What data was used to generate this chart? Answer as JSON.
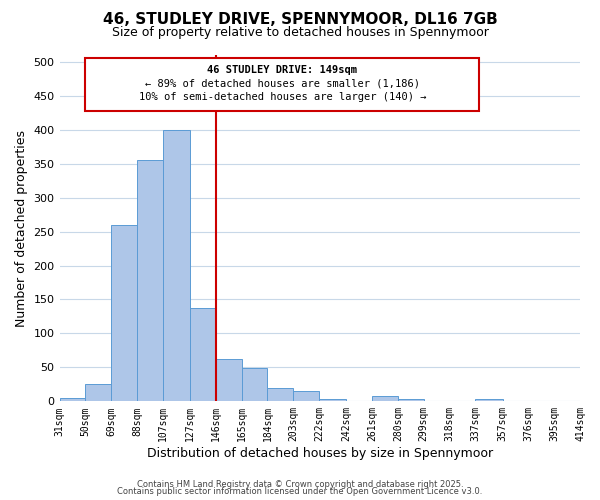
{
  "title": "46, STUDLEY DRIVE, SPENNYMOOR, DL16 7GB",
  "subtitle": "Size of property relative to detached houses in Spennymoor",
  "xlabel": "Distribution of detached houses by size in Spennymoor",
  "ylabel": "Number of detached properties",
  "bar_edges": [
    31,
    50,
    69,
    88,
    107,
    127,
    146,
    165,
    184,
    203,
    222,
    242,
    261,
    280,
    299,
    318,
    337,
    357,
    376,
    395,
    414
  ],
  "bar_heights": [
    5,
    25,
    260,
    355,
    400,
    137,
    63,
    49,
    20,
    15,
    3,
    0,
    8,
    3,
    0,
    0,
    3,
    0,
    0,
    0
  ],
  "bar_color": "#aec6e8",
  "bar_edgecolor": "#5b9bd5",
  "vline_x": 146,
  "vline_color": "#cc0000",
  "annotation_box_edgecolor": "#cc0000",
  "annotation_line1": "46 STUDLEY DRIVE: 149sqm",
  "annotation_line2": "← 89% of detached houses are smaller (1,186)",
  "annotation_line3": "10% of semi-detached houses are larger (140) →",
  "ylim": [
    0,
    510
  ],
  "xlim": [
    31,
    414
  ],
  "yticks": [
    0,
    50,
    100,
    150,
    200,
    250,
    300,
    350,
    400,
    450,
    500
  ],
  "xtick_labels": [
    "31sqm",
    "50sqm",
    "69sqm",
    "88sqm",
    "107sqm",
    "127sqm",
    "146sqm",
    "165sqm",
    "184sqm",
    "203sqm",
    "222sqm",
    "242sqm",
    "261sqm",
    "280sqm",
    "299sqm",
    "318sqm",
    "337sqm",
    "357sqm",
    "376sqm",
    "395sqm",
    "414sqm"
  ],
  "xtick_positions": [
    31,
    50,
    69,
    88,
    107,
    127,
    146,
    165,
    184,
    203,
    222,
    242,
    261,
    280,
    299,
    318,
    337,
    357,
    376,
    395,
    414
  ],
  "footer1": "Contains HM Land Registry data © Crown copyright and database right 2025.",
  "footer2": "Contains public sector information licensed under the Open Government Licence v3.0.",
  "background_color": "#ffffff",
  "grid_color": "#c8d8e8",
  "title_fontsize": 11,
  "subtitle_fontsize": 9,
  "xlabel_fontsize": 9,
  "ylabel_fontsize": 9,
  "annot_fontsize": 7.5,
  "tick_fontsize": 7,
  "footer_fontsize": 6
}
